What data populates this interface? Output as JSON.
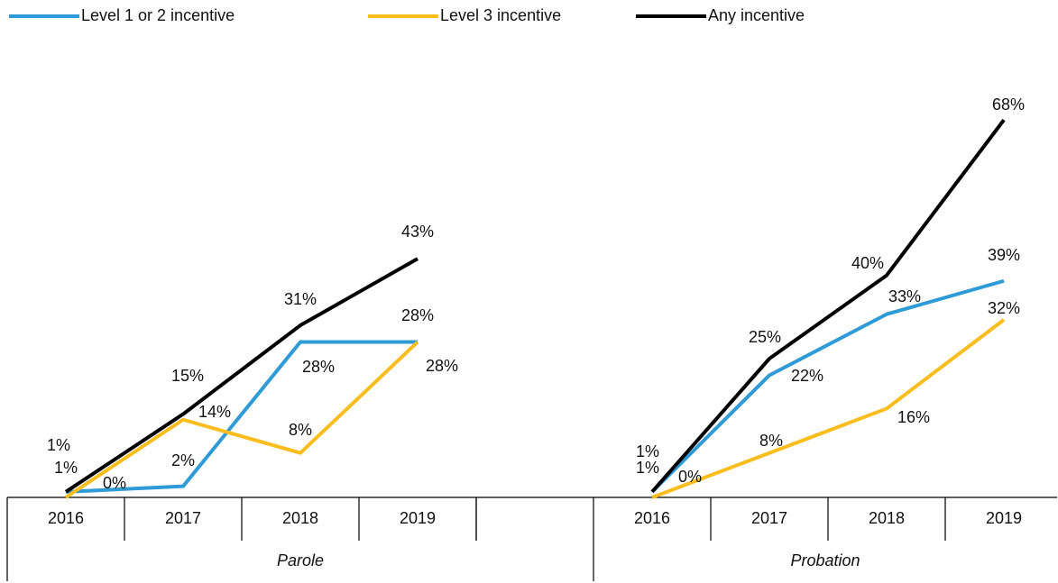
{
  "chart_data": [
    {
      "type": "line",
      "title": "Parole",
      "categories": [
        "2016",
        "2017",
        "2018",
        "2019"
      ],
      "series": [
        {
          "name": "Level 1 or 2 incentive",
          "color": "#2e9bd6",
          "values": [
            1,
            2,
            28,
            28
          ],
          "value_labels": [
            "1%",
            "2%",
            "28%",
            "28%"
          ]
        },
        {
          "name": "Level 3 incentive",
          "color": "#f9bd1e",
          "values": [
            0,
            14,
            8,
            28
          ],
          "value_labels": [
            "0%",
            "14%",
            "8%",
            "28%"
          ]
        },
        {
          "name": "Any incentive",
          "color": "#000000",
          "values": [
            1,
            15,
            31,
            43
          ],
          "value_labels": [
            "1%",
            "15%",
            "31%",
            "43%"
          ]
        }
      ]
    },
    {
      "type": "line",
      "title": "Probation",
      "categories": [
        "2016",
        "2017",
        "2018",
        "2019"
      ],
      "series": [
        {
          "name": "Level 1 or 2 incentive",
          "color": "#2e9bd6",
          "values": [
            1,
            22,
            33,
            39
          ],
          "value_labels": [
            "1%",
            "22%",
            "33%",
            "39%"
          ]
        },
        {
          "name": "Level 3 incentive",
          "color": "#f9bd1e",
          "values": [
            0,
            8,
            16,
            32
          ],
          "value_labels": [
            "0%",
            "8%",
            "16%",
            "32%"
          ]
        },
        {
          "name": "Any incentive",
          "color": "#000000",
          "values": [
            1,
            25,
            40,
            68
          ],
          "value_labels": [
            "1%",
            "25%",
            "40%",
            "68%"
          ]
        }
      ]
    }
  ]
}
